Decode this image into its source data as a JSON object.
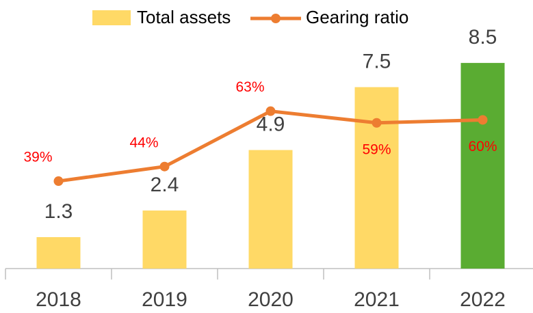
{
  "chart_data": {
    "type": "bar",
    "categories": [
      "2018",
      "2019",
      "2020",
      "2021",
      "2022"
    ],
    "series": [
      {
        "name": "Total assets",
        "type": "bar",
        "color": "#ffd966",
        "colors": [
          "#ffd966",
          "#ffd966",
          "#ffd966",
          "#ffd966",
          "#5aac32"
        ],
        "values": [
          1.3,
          2.4,
          4.9,
          7.5,
          8.5
        ]
      },
      {
        "name": "Gearing ratio",
        "type": "line",
        "axis": "y2",
        "color": "#ed7d31",
        "values": [
          39,
          44,
          63,
          59,
          60
        ],
        "value_labels": [
          "39%",
          "44%",
          "63%",
          "59%",
          "60%"
        ]
      }
    ],
    "ylim": [
      0,
      10
    ],
    "y2lim": [
      9,
      92
    ],
    "legend": "top"
  }
}
